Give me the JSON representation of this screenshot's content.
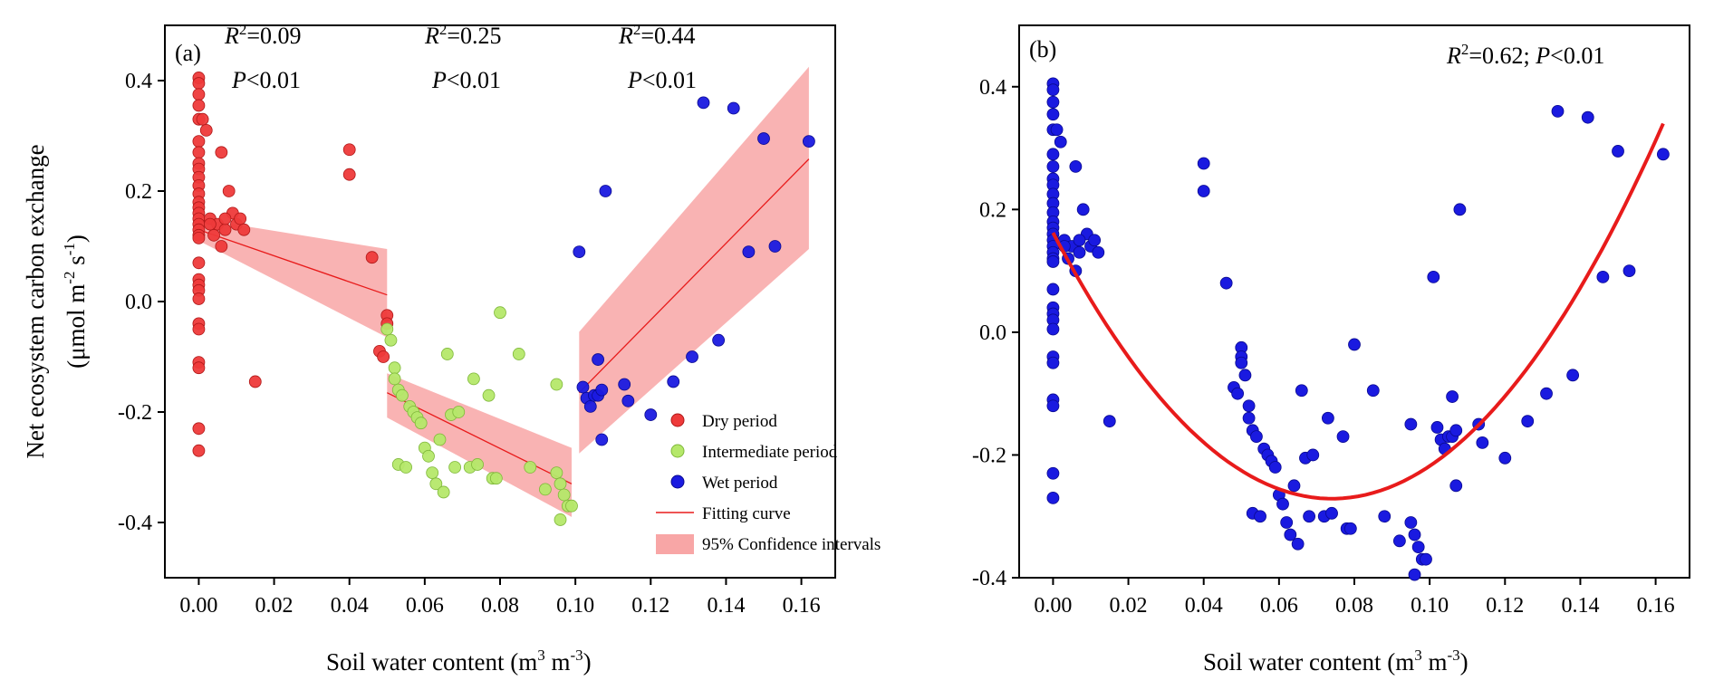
{
  "chart_data": [
    {
      "panel_label": "(a)",
      "type": "scatter",
      "xlabel": "Soil water content (m",
      "xlabel_unit_sup1": "3",
      "xlabel_unit_mid": " m",
      "xlabel_unit_sup2": "-3",
      "xlabel_close": ")",
      "ylabel_line1": "Net ecosystem carbon exchange",
      "ylabel_line2_a": "(μmol m",
      "ylabel_line2_sup1": "-2",
      "ylabel_line2_b": " s",
      "ylabel_line2_sup2": "-1",
      "ylabel_line2_c": ")",
      "xlim": [
        -0.009,
        0.169
      ],
      "ylim": [
        -0.5,
        0.5
      ],
      "xticks": [
        "0.00",
        "0.02",
        "0.04",
        "0.06",
        "0.08",
        "0.10",
        "0.12",
        "0.14",
        "0.16"
      ],
      "xtick_values": [
        0,
        0.02,
        0.04,
        0.06,
        0.08,
        0.1,
        0.12,
        0.14,
        0.16
      ],
      "yticks": [
        "0.4",
        "0.2",
        "0.0",
        "-0.2",
        "-0.4"
      ],
      "ytick_values": [
        0.4,
        0.2,
        0.0,
        -0.2,
        -0.4
      ],
      "annotations": [
        {
          "r_label": "R",
          "r_sup": "2",
          "r_value": "=0.09",
          "p_label": "P",
          "p_value": "<0.01"
        },
        {
          "r_label": "R",
          "r_sup": "2",
          "r_value": "=0.25",
          "p_label": "P",
          "p_value": "<0.01"
        },
        {
          "r_label": "R",
          "r_sup": "2",
          "r_value": "=0.44",
          "p_label": "P",
          "p_value": "<0.01"
        }
      ],
      "legend": {
        "position": "bottom-right",
        "entries": [
          "Dry period",
          "Intermediate period",
          "Wet period",
          "Fitting curve",
          "95% Confidence intervals"
        ]
      },
      "colors": {
        "dry": "#ee3a3a",
        "intermediate": "#b5e86a",
        "wet": "#1a1ae0",
        "fit": "#e81b1b",
        "ci": "#f8a6a6"
      },
      "series": [
        {
          "name": "Dry period",
          "points": [
            [
              0,
              0.405
            ],
            [
              0,
              0.395
            ],
            [
              0,
              0.375
            ],
            [
              0,
              0.355
            ],
            [
              0,
              0.33
            ],
            [
              0,
              0.29
            ],
            [
              0,
              0.27
            ],
            [
              0,
              0.25
            ],
            [
              0,
              0.24
            ],
            [
              0,
              0.225
            ],
            [
              0,
              0.21
            ],
            [
              0,
              0.195
            ],
            [
              0,
              0.18
            ],
            [
              0,
              0.17
            ],
            [
              0,
              0.16
            ],
            [
              0,
              0.15
            ],
            [
              0,
              0.14
            ],
            [
              0,
              0.13
            ],
            [
              0,
              0.12
            ],
            [
              0,
              0.115
            ],
            [
              0,
              0.07
            ],
            [
              0,
              0.04
            ],
            [
              0,
              0.03
            ],
            [
              0,
              0.02
            ],
            [
              0,
              0.005
            ],
            [
              0,
              -0.04
            ],
            [
              0,
              -0.05
            ],
            [
              0,
              -0.11
            ],
            [
              0,
              -0.12
            ],
            [
              0,
              -0.23
            ],
            [
              0,
              -0.27
            ],
            [
              0.001,
              0.33
            ],
            [
              0.002,
              0.31
            ],
            [
              0.003,
              0.15
            ],
            [
              0.004,
              0.12
            ],
            [
              0.005,
              0.14
            ],
            [
              0.006,
              0.1
            ],
            [
              0.006,
              0.27
            ],
            [
              0.007,
              0.13
            ],
            [
              0.008,
              0.2
            ],
            [
              0.009,
              0.16
            ],
            [
              0.01,
              0.14
            ],
            [
              0.011,
              0.15
            ],
            [
              0.012,
              0.13
            ],
            [
              0.003,
              0.14
            ],
            [
              0.007,
              0.15
            ],
            [
              0.015,
              -0.145
            ],
            [
              0.04,
              0.275
            ],
            [
              0.04,
              0.23
            ],
            [
              0.046,
              0.08
            ],
            [
              0.048,
              -0.09
            ],
            [
              0.049,
              -0.1
            ],
            [
              0.05,
              -0.025
            ],
            [
              0.05,
              -0.04
            ]
          ]
        },
        {
          "name": "Intermediate period",
          "points": [
            [
              0.05,
              -0.05
            ],
            [
              0.051,
              -0.07
            ],
            [
              0.052,
              -0.12
            ],
            [
              0.052,
              -0.14
            ],
            [
              0.053,
              -0.16
            ],
            [
              0.054,
              -0.17
            ],
            [
              0.053,
              -0.295
            ],
            [
              0.055,
              -0.3
            ],
            [
              0.056,
              -0.19
            ],
            [
              0.057,
              -0.2
            ],
            [
              0.058,
              -0.21
            ],
            [
              0.059,
              -0.22
            ],
            [
              0.06,
              -0.265
            ],
            [
              0.061,
              -0.28
            ],
            [
              0.062,
              -0.31
            ],
            [
              0.063,
              -0.33
            ],
            [
              0.064,
              -0.25
            ],
            [
              0.065,
              -0.345
            ],
            [
              0.066,
              -0.095
            ],
            [
              0.067,
              -0.205
            ],
            [
              0.068,
              -0.3
            ],
            [
              0.069,
              -0.2
            ],
            [
              0.072,
              -0.3
            ],
            [
              0.073,
              -0.14
            ],
            [
              0.074,
              -0.295
            ],
            [
              0.077,
              -0.17
            ],
            [
              0.078,
              -0.32
            ],
            [
              0.079,
              -0.32
            ],
            [
              0.08,
              -0.02
            ],
            [
              0.085,
              -0.095
            ],
            [
              0.088,
              -0.3
            ],
            [
              0.092,
              -0.34
            ],
            [
              0.095,
              -0.15
            ],
            [
              0.095,
              -0.31
            ],
            [
              0.096,
              -0.33
            ],
            [
              0.096,
              -0.395
            ],
            [
              0.097,
              -0.35
            ],
            [
              0.098,
              -0.37
            ],
            [
              0.099,
              -0.37
            ]
          ]
        },
        {
          "name": "Wet period",
          "points": [
            [
              0.101,
              0.09
            ],
            [
              0.102,
              -0.155
            ],
            [
              0.103,
              -0.175
            ],
            [
              0.104,
              -0.19
            ],
            [
              0.105,
              -0.17
            ],
            [
              0.106,
              -0.105
            ],
            [
              0.106,
              -0.17
            ],
            [
              0.107,
              -0.25
            ],
            [
              0.107,
              -0.16
            ],
            [
              0.108,
              0.2
            ],
            [
              0.113,
              -0.15
            ],
            [
              0.114,
              -0.18
            ],
            [
              0.12,
              -0.205
            ],
            [
              0.126,
              -0.145
            ],
            [
              0.131,
              -0.1
            ],
            [
              0.134,
              0.36
            ],
            [
              0.138,
              -0.07
            ],
            [
              0.142,
              0.35
            ],
            [
              0.146,
              0.09
            ],
            [
              0.15,
              0.295
            ],
            [
              0.153,
              0.1
            ],
            [
              0.162,
              0.29
            ]
          ]
        }
      ],
      "fits": [
        {
          "x": [
            0.0,
            0.05
          ],
          "y": [
            0.13,
            0.012
          ],
          "ci_upper": [
            0.15,
            0.095
          ],
          "ci_lower": [
            0.11,
            -0.065
          ]
        },
        {
          "x": [
            0.05,
            0.099
          ],
          "y": [
            -0.165,
            -0.33
          ],
          "ci_upper": [
            -0.13,
            -0.265
          ],
          "ci_lower": [
            -0.21,
            -0.39
          ]
        },
        {
          "x": [
            0.101,
            0.162
          ],
          "y": [
            -0.165,
            0.258
          ],
          "ci_upper": [
            -0.055,
            0.425
          ],
          "ci_lower": [
            -0.275,
            0.095
          ]
        }
      ]
    },
    {
      "panel_label": "(b)",
      "type": "scatter",
      "xlabel": "Soil water content (m",
      "xlabel_unit_sup1": "3",
      "xlabel_unit_mid": " m",
      "xlabel_unit_sup2": "-3",
      "xlabel_close": ")",
      "xlim": [
        -0.009,
        0.169
      ],
      "ylim": [
        -0.4,
        0.5
      ],
      "xticks": [
        "0.00",
        "0.02",
        "0.04",
        "0.06",
        "0.08",
        "0.10",
        "0.12",
        "0.14",
        "0.16"
      ],
      "xtick_values": [
        0,
        0.02,
        0.04,
        0.06,
        0.08,
        0.1,
        0.12,
        0.14,
        0.16
      ],
      "yticks": [
        "0.4",
        "0.2",
        "0.0",
        "-0.2",
        "-0.4"
      ],
      "ytick_values": [
        0.4,
        0.2,
        0.0,
        -0.2,
        -0.4
      ],
      "annotation": {
        "r_label": "R",
        "r_sup": "2",
        "r_value": "=0.62; ",
        "p_label": "P",
        "p_value": "<0.01"
      },
      "colors": {
        "points": "#1a1ae0",
        "fit": "#e81b1b"
      },
      "fit": {
        "type": "quadratic",
        "a": 79.0,
        "b": -11.7,
        "c": 0.162,
        "xrange": [
          0.0,
          0.162
        ]
      }
    }
  ]
}
